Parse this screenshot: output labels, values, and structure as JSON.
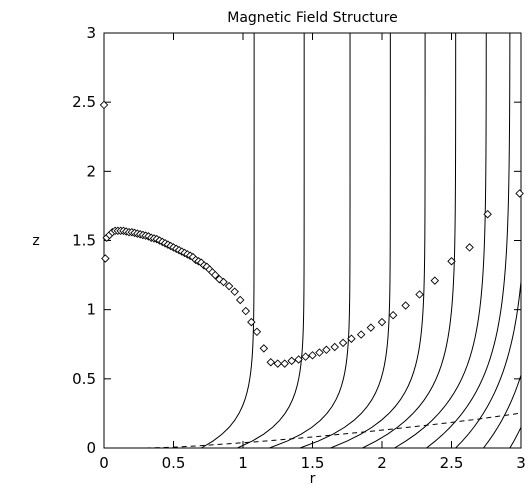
{
  "chart_data": {
    "type": "line",
    "title": "Magnetic Field Structure",
    "xlabel": "r",
    "ylabel": "z",
    "xlim": [
      0,
      3
    ],
    "ylim": [
      0,
      3
    ],
    "x_ticks": [
      "0",
      "0.5",
      "1",
      "1.5",
      "2",
      "2.5",
      "3"
    ],
    "y_ticks": [
      "0",
      "0.5",
      "1",
      "1.5",
      "2",
      "2.5",
      "3"
    ],
    "grid": false,
    "legend": "none",
    "series": [
      {
        "style": "solid",
        "description": "field lines",
        "lines": [
          {
            "r0": 0.7,
            "r3": 1.08,
            "k": 0.2
          },
          {
            "r0": 0.96,
            "r3": 1.44,
            "k": 0.2
          },
          {
            "r0": 1.19,
            "r3": 1.77,
            "k": 0.2
          },
          {
            "r0": 1.41,
            "r3": 2.06,
            "k": 0.22
          },
          {
            "r0": 1.63,
            "r3": 2.31,
            "k": 0.26
          },
          {
            "r0": 1.86,
            "r3": 2.53,
            "k": 0.32
          },
          {
            "r0": 2.09,
            "r3": 2.75,
            "k": 0.38
          },
          {
            "r0": 2.32,
            "r3": 2.92,
            "k": 0.45
          },
          {
            "r0": 2.53,
            "r3": 3.05,
            "k": 0.52
          },
          {
            "r0": 2.73,
            "r3": 3.18,
            "k": 0.58
          },
          {
            "r0": 2.92,
            "r3": 3.3,
            "k": 0.64
          }
        ]
      },
      {
        "style": "diamond-markers",
        "description": "surface points",
        "x": [
          0.0,
          0.01,
          0.02,
          0.04,
          0.06,
          0.08,
          0.1,
          0.12,
          0.14,
          0.16,
          0.18,
          0.2,
          0.22,
          0.24,
          0.26,
          0.28,
          0.3,
          0.32,
          0.34,
          0.36,
          0.38,
          0.4,
          0.42,
          0.44,
          0.46,
          0.48,
          0.5,
          0.52,
          0.54,
          0.56,
          0.58,
          0.6,
          0.62,
          0.64,
          0.66,
          0.68,
          0.7,
          0.72,
          0.74,
          0.76,
          0.78,
          0.8,
          0.83,
          0.86,
          0.9,
          0.94,
          0.98,
          1.02,
          1.06,
          1.1,
          1.15,
          1.2,
          1.25,
          1.3,
          1.35,
          1.4,
          1.45,
          1.5,
          1.55,
          1.6,
          1.66,
          1.72,
          1.78,
          1.85,
          1.92,
          2.0,
          2.08,
          2.17,
          2.27,
          2.38,
          2.5,
          2.63,
          2.76,
          2.99
        ],
        "y": [
          2.48,
          1.37,
          1.52,
          1.54,
          1.56,
          1.57,
          1.57,
          1.57,
          1.57,
          1.565,
          1.56,
          1.56,
          1.555,
          1.55,
          1.545,
          1.54,
          1.535,
          1.53,
          1.52,
          1.515,
          1.51,
          1.5,
          1.49,
          1.48,
          1.47,
          1.46,
          1.45,
          1.44,
          1.43,
          1.42,
          1.41,
          1.4,
          1.39,
          1.38,
          1.36,
          1.35,
          1.34,
          1.32,
          1.31,
          1.29,
          1.27,
          1.25,
          1.22,
          1.2,
          1.17,
          1.13,
          1.07,
          0.99,
          0.91,
          0.84,
          0.72,
          0.62,
          0.61,
          0.61,
          0.63,
          0.64,
          0.66,
          0.67,
          0.69,
          0.71,
          0.73,
          0.76,
          0.79,
          0.82,
          0.87,
          0.91,
          0.96,
          1.03,
          1.11,
          1.21,
          1.35,
          1.45,
          1.69,
          1.84
        ]
      },
      {
        "style": "dashed",
        "description": "dashed curve",
        "x": [
          0.3,
          0.5,
          0.7,
          0.9,
          1.1,
          1.3,
          1.5,
          1.7,
          1.9,
          2.1,
          2.3,
          2.5,
          2.7,
          2.9,
          3.0
        ],
        "y": [
          0.0,
          0.006,
          0.017,
          0.031,
          0.045,
          0.062,
          0.08,
          0.099,
          0.119,
          0.14,
          0.162,
          0.185,
          0.21,
          0.238,
          0.253
        ]
      }
    ]
  }
}
